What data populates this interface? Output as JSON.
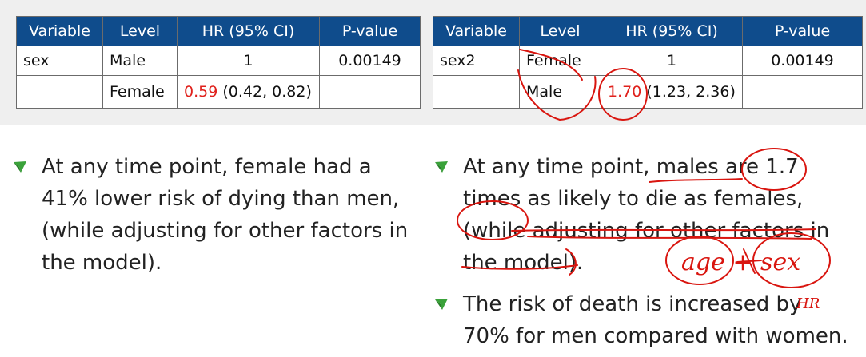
{
  "table_left": {
    "headers": [
      "Variable",
      "Level",
      "HR (95% CI)",
      "P-value"
    ],
    "rows": [
      {
        "variable": "sex",
        "level": "Male",
        "hr": "1",
        "hr_rest": "",
        "p": "0.00149"
      },
      {
        "variable": "",
        "level": "Female",
        "hr": "0.59",
        "hr_rest": " (0.42, 0.82)",
        "p": ""
      }
    ]
  },
  "table_right": {
    "headers": [
      "Variable",
      "Level",
      "HR (95% CI)",
      "P-value"
    ],
    "rows": [
      {
        "variable": "sex2",
        "level": "Female",
        "hr": "1",
        "hr_rest": "",
        "p": "0.00149"
      },
      {
        "variable": "",
        "level": "Male",
        "hr": "1.70",
        "hr_rest": " (1.23, 2.36)",
        "p": ""
      }
    ]
  },
  "left_bullets": [
    "At any time point, female had a 41% lower risk of dying than men, (while adjusting for other factors in the model)."
  ],
  "right_bullets": [
    "At any time point, males are 1.7 times as likely to die as females, (while adjusting for other factors in the model).",
    "The risk of death is increased by 70% for men compared with women."
  ],
  "handwriting": {
    "note": "age + sex",
    "hr_note": "HR"
  },
  "colors": {
    "header_bg": "#0f4c8c",
    "highlight": "#e0211c",
    "ink": "#d9150f",
    "bullet_green": "#3aa23a"
  }
}
